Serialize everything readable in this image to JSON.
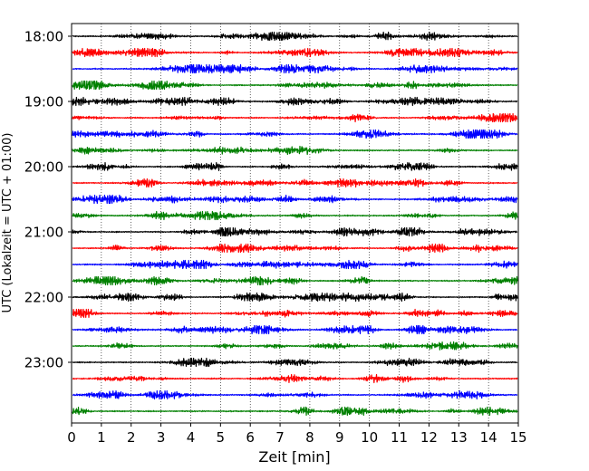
{
  "chart_data": {
    "type": "line",
    "title": "",
    "xlabel": "Zeit  [min]",
    "ylabel": "UTC (Lokalzeit = UTC + 01:00)",
    "xlim": [
      0,
      15
    ],
    "x_ticks": [
      "0",
      "1",
      "2",
      "3",
      "4",
      "5",
      "6",
      "7",
      "8",
      "9",
      "10",
      "11",
      "12",
      "13",
      "14",
      "15"
    ],
    "y_ticks": [
      "18:00",
      "19:00",
      "20:00",
      "21:00",
      "22:00",
      "23:00"
    ],
    "grid": "vertical-dotted",
    "row_colors": [
      "#000000",
      "#ff0000",
      "#0000ff",
      "#008000"
    ],
    "rows_per_hour": 4,
    "rows": [
      "18:00",
      "18:15",
      "18:30",
      "18:45",
      "19:00",
      "19:15",
      "19:30",
      "19:45",
      "20:00",
      "20:15",
      "20:30",
      "20:45",
      "21:00",
      "21:15",
      "21:30",
      "21:45",
      "22:00",
      "22:15",
      "22:30",
      "22:45",
      "23:00",
      "23:15",
      "23:30",
      "23:45"
    ]
  }
}
